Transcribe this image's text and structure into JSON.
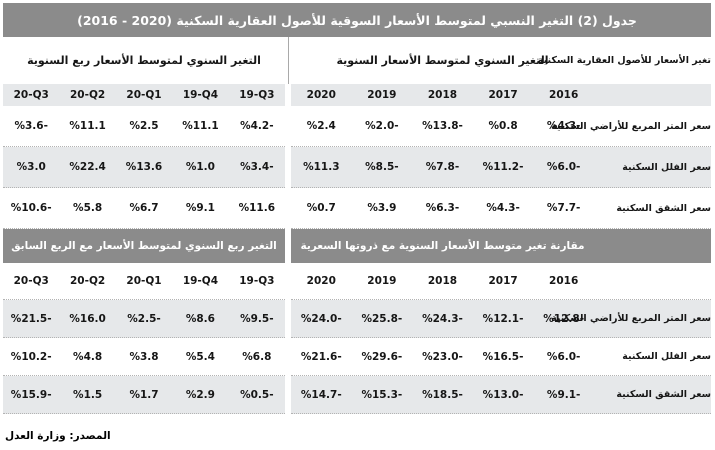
{
  "title": "جدول (2) التغير النسبي لمتوسط الأسعار السوقية للأصول العقارية السكنية ‪(2016 - 2020)‬",
  "colors": {
    "band_gray": "#8b8b8b",
    "row_gray": "#e6e8ea",
    "text": "#161616"
  },
  "table1": {
    "assets_header": "تغير الأسعار للأصول العقارية السكنية",
    "annual_header": "التغير السنوي لمتوسط الأسعار السنوية",
    "quarterly_header": "التغير السنوي لمتوسط الأسعار ربع السنوية",
    "years": [
      "2020",
      "2019",
      "2018",
      "2017",
      "2016"
    ],
    "quarters": [
      "20-Q3",
      "20-Q2",
      "20-Q1",
      "19-Q4",
      "19-Q3"
    ],
    "rows": [
      {
        "label": "سعر المتر المربع للأراضي السكنية",
        "annual": [
          "%2.4",
          "%2.0-",
          "%13.8-",
          "%0.8",
          "%4.3-"
        ],
        "quarterly": [
          "%3.6-",
          "%11.1",
          "%2.5",
          "%11.1",
          "%4.2-"
        ]
      },
      {
        "label": "سعر الفلل السكنية",
        "annual": [
          "%11.3",
          "%8.5-",
          "%7.8-",
          "%11.2-",
          "%6.0-"
        ],
        "quarterly": [
          "%3.0",
          "%22.4",
          "%13.6",
          "%1.0",
          "%3.4-"
        ]
      },
      {
        "label": "سعر الشقق السكنية",
        "annual": [
          "%0.7",
          "%3.9",
          "%6.3-",
          "%4.3-",
          "%7.7-"
        ],
        "quarterly": [
          "%10.6-",
          "%5.8",
          "%6.7",
          "%9.1",
          "%11.6"
        ]
      }
    ]
  },
  "table2": {
    "annual_header": "مقارنة تغير متوسط الأسعار السنوية مع ذروتها السعرية",
    "quarterly_header": "التغير ربع السنوي لمتوسط الأسعار مع الربع السابق",
    "years": [
      "2020",
      "2019",
      "2018",
      "2017",
      "2016"
    ],
    "quarters": [
      "20-Q3",
      "20-Q2",
      "20-Q1",
      "19-Q4",
      "19-Q3"
    ],
    "rows": [
      {
        "label": "سعر المتر المربع للأراضي السكنية",
        "annual": [
          "%24.0-",
          "%25.8-",
          "%24.3-",
          "%12.1-",
          "%12.8-"
        ],
        "quarterly": [
          "%21.5-",
          "%16.0",
          "%2.5-",
          "%8.6",
          "%9.5-"
        ]
      },
      {
        "label": "سعر الفلل السكنية",
        "annual": [
          "%21.6-",
          "%29.6-",
          "%23.0-",
          "%16.5-",
          "%6.0-"
        ],
        "quarterly": [
          "%10.2-",
          "%4.8",
          "%3.8",
          "%5.4",
          "%6.8"
        ]
      },
      {
        "label": "سعر الشقق السكنية",
        "annual": [
          "%14.7-",
          "%15.3-",
          "%18.5-",
          "%13.0-",
          "%9.1-"
        ],
        "quarterly": [
          "%15.9-",
          "%1.5",
          "%1.7",
          "%2.9",
          "%0.5-"
        ]
      }
    ]
  },
  "footer": {
    "source": "المصدر: وزارة العدل"
  }
}
